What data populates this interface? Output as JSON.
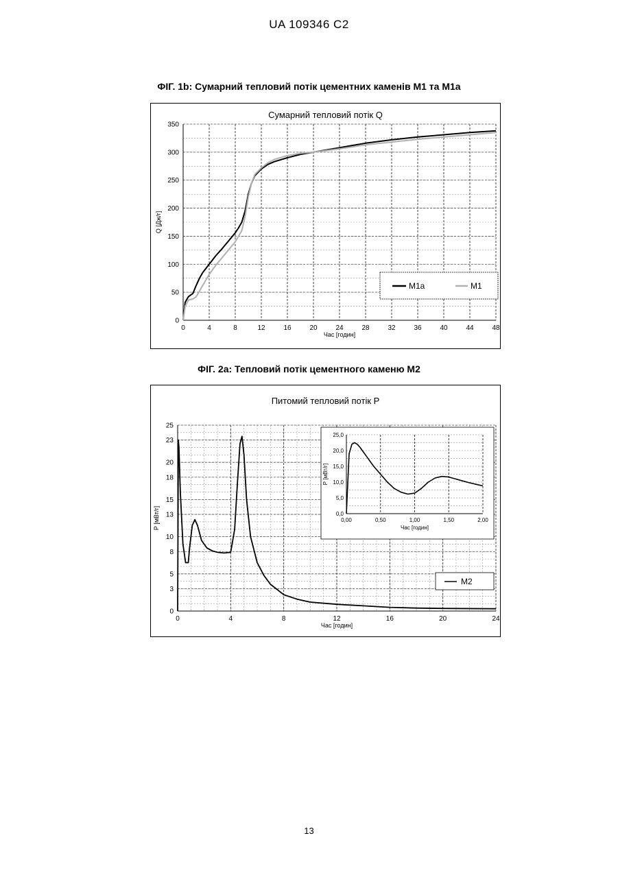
{
  "header": {
    "patent": "UA   109346   C2"
  },
  "footer": {
    "page_number": "13"
  },
  "chart_data": [
    {
      "id": "fig1b",
      "type": "line",
      "figure_caption": "ФІГ. 1b: Сумарний тепловий потік цементних каменів М1 та М1а",
      "title": "Сумарний тепловий потік Q",
      "xlabel": "Час [годин]",
      "ylabel": "Q [Дж/г]",
      "xlim": [
        0,
        48
      ],
      "ylim": [
        0,
        350
      ],
      "xticks": [
        0,
        4,
        8,
        12,
        16,
        20,
        24,
        28,
        32,
        36,
        40,
        44,
        48
      ],
      "yticks": [
        0,
        50,
        100,
        150,
        200,
        250,
        300,
        350
      ],
      "grid": true,
      "legend": "bottom-right",
      "series": [
        {
          "name": "M1a",
          "color": "#000000",
          "x": [
            0,
            0.3,
            0.8,
            1.5,
            2,
            2.5,
            3,
            4,
            5,
            6,
            7,
            8,
            8.5,
            9,
            9.5,
            10,
            10.5,
            11,
            12,
            13,
            14,
            16,
            18,
            20,
            24,
            28,
            32,
            36,
            40,
            44,
            48
          ],
          "y": [
            0,
            32,
            42,
            48,
            62,
            75,
            85,
            100,
            115,
            128,
            142,
            156,
            165,
            175,
            195,
            225,
            245,
            258,
            270,
            278,
            283,
            290,
            296,
            300,
            308,
            316,
            322,
            327,
            331,
            335,
            338
          ]
        },
        {
          "name": "M1",
          "color": "#b0b0b0",
          "x": [
            0,
            0.3,
            0.8,
            1.5,
            2,
            2.5,
            3,
            4,
            5,
            6,
            7,
            8,
            8.5,
            9,
            9.5,
            10,
            10.5,
            11,
            12,
            13,
            14,
            16,
            18,
            20,
            24,
            28,
            32,
            36,
            40,
            44,
            48
          ],
          "y": [
            0,
            25,
            36,
            38,
            42,
            52,
            62,
            82,
            98,
            112,
            126,
            140,
            150,
            160,
            185,
            220,
            245,
            260,
            272,
            281,
            287,
            294,
            298,
            300,
            306,
            313,
            318,
            323,
            327,
            331,
            335
          ]
        }
      ]
    },
    {
      "id": "fig2a",
      "type": "line",
      "figure_caption": "ФІГ. 2а: Тепловий потік цементного каменю М2",
      "title": "Питомий тепловий потік Р",
      "xlabel": "Час [годин]",
      "ylabel": "Р [мВт/г]",
      "xlim": [
        0,
        24
      ],
      "ylim": [
        0,
        25
      ],
      "xticks": [
        0,
        4,
        8,
        12,
        16,
        20,
        24
      ],
      "yticks": [
        0,
        3,
        5,
        8,
        10,
        13,
        15,
        18,
        20,
        23,
        25
      ],
      "grid": true,
      "legend": "bottom-right",
      "series": [
        {
          "name": "M2",
          "color": "#000000",
          "x": [
            0,
            0.05,
            0.1,
            0.2,
            0.4,
            0.6,
            0.8,
            0.9,
            1.1,
            1.3,
            1.5,
            1.8,
            2.2,
            2.6,
            3,
            3.5,
            4,
            4.3,
            4.5,
            4.7,
            4.85,
            5,
            5.2,
            5.5,
            6,
            6.5,
            7,
            8,
            9,
            10,
            12,
            14,
            16,
            18,
            20,
            24
          ],
          "y": [
            0,
            23,
            22,
            16,
            9,
            6.5,
            6.5,
            8.5,
            11.5,
            12.3,
            11.5,
            9.5,
            8.5,
            8.1,
            7.9,
            7.8,
            7.9,
            11,
            17,
            22.5,
            23.5,
            21,
            15,
            10,
            6.5,
            4.8,
            3.6,
            2.2,
            1.6,
            1.2,
            0.9,
            0.7,
            0.5,
            0.4,
            0.35,
            0.3
          ]
        }
      ],
      "inset": {
        "type": "line",
        "xlabel": "Час [годин]",
        "ylabel": "Р [мВт/г]",
        "xlim": [
          0,
          2
        ],
        "ylim": [
          0,
          25
        ],
        "xticks": [
          "0,00",
          "0,50",
          "1,00",
          "1,50",
          "2,00"
        ],
        "xtick_values": [
          0,
          0.5,
          1,
          1.5,
          2
        ],
        "yticks": [
          "0,0",
          "5,0",
          "10,0",
          "15,0",
          "20,0",
          "25,0"
        ],
        "ytick_values": [
          0,
          5,
          10,
          15,
          20,
          25
        ],
        "series": [
          {
            "color": "#000000",
            "x": [
              0,
              0.04,
              0.08,
              0.12,
              0.16,
              0.2,
              0.3,
              0.4,
              0.5,
              0.6,
              0.7,
              0.8,
              0.9,
              1.0,
              1.1,
              1.2,
              1.3,
              1.4,
              1.5,
              1.6,
              1.7,
              1.8,
              1.9,
              2.0
            ],
            "y": [
              0,
              19,
              22,
              22.5,
              22,
              21,
              18,
              15,
              12.5,
              10,
              8,
              6.8,
              6.2,
              6.5,
              8,
              10,
              11.3,
              11.8,
              11.6,
              11,
              10.4,
              9.8,
              9.3,
              8.8
            ]
          }
        ]
      }
    }
  ]
}
